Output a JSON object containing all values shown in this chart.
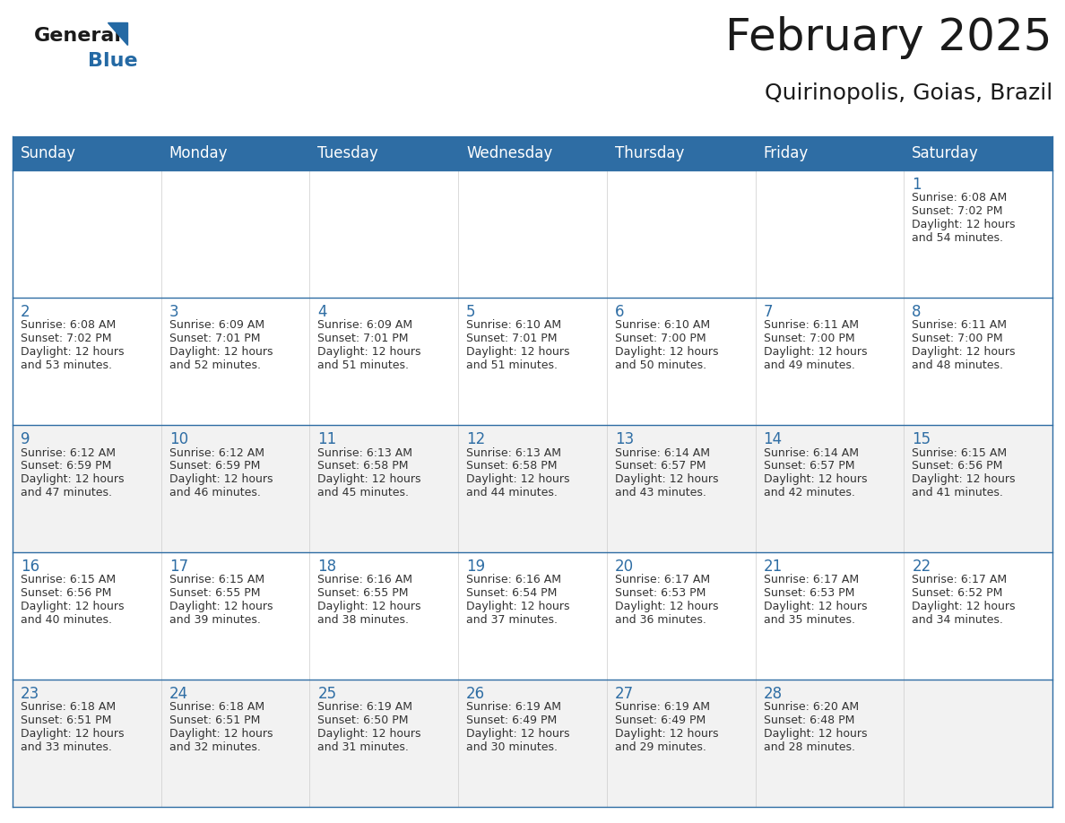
{
  "title": "February 2025",
  "subtitle": "Quirinopolis, Goias, Brazil",
  "header_bg": "#2E6DA4",
  "header_text": "#FFFFFF",
  "row_colors": [
    "#FFFFFF",
    "#FFFFFF",
    "#F2F2F2",
    "#FFFFFF",
    "#F2F2F2",
    "#FFFFFF"
  ],
  "cell_border": "#2E6DA4",
  "day_headers": [
    "Sunday",
    "Monday",
    "Tuesday",
    "Wednesday",
    "Thursday",
    "Friday",
    "Saturday"
  ],
  "days": [
    {
      "day": 1,
      "col": 6,
      "row": 0,
      "sunrise": "6:08 AM",
      "sunset": "7:02 PM",
      "daylight_suffix": "54 minutes."
    },
    {
      "day": 2,
      "col": 0,
      "row": 1,
      "sunrise": "6:08 AM",
      "sunset": "7:02 PM",
      "daylight_suffix": "53 minutes."
    },
    {
      "day": 3,
      "col": 1,
      "row": 1,
      "sunrise": "6:09 AM",
      "sunset": "7:01 PM",
      "daylight_suffix": "52 minutes."
    },
    {
      "day": 4,
      "col": 2,
      "row": 1,
      "sunrise": "6:09 AM",
      "sunset": "7:01 PM",
      "daylight_suffix": "51 minutes."
    },
    {
      "day": 5,
      "col": 3,
      "row": 1,
      "sunrise": "6:10 AM",
      "sunset": "7:01 PM",
      "daylight_suffix": "51 minutes."
    },
    {
      "day": 6,
      "col": 4,
      "row": 1,
      "sunrise": "6:10 AM",
      "sunset": "7:00 PM",
      "daylight_suffix": "50 minutes."
    },
    {
      "day": 7,
      "col": 5,
      "row": 1,
      "sunrise": "6:11 AM",
      "sunset": "7:00 PM",
      "daylight_suffix": "49 minutes."
    },
    {
      "day": 8,
      "col": 6,
      "row": 1,
      "sunrise": "6:11 AM",
      "sunset": "7:00 PM",
      "daylight_suffix": "48 minutes."
    },
    {
      "day": 9,
      "col": 0,
      "row": 2,
      "sunrise": "6:12 AM",
      "sunset": "6:59 PM",
      "daylight_suffix": "47 minutes."
    },
    {
      "day": 10,
      "col": 1,
      "row": 2,
      "sunrise": "6:12 AM",
      "sunset": "6:59 PM",
      "daylight_suffix": "46 minutes."
    },
    {
      "day": 11,
      "col": 2,
      "row": 2,
      "sunrise": "6:13 AM",
      "sunset": "6:58 PM",
      "daylight_suffix": "45 minutes."
    },
    {
      "day": 12,
      "col": 3,
      "row": 2,
      "sunrise": "6:13 AM",
      "sunset": "6:58 PM",
      "daylight_suffix": "44 minutes."
    },
    {
      "day": 13,
      "col": 4,
      "row": 2,
      "sunrise": "6:14 AM",
      "sunset": "6:57 PM",
      "daylight_suffix": "43 minutes."
    },
    {
      "day": 14,
      "col": 5,
      "row": 2,
      "sunrise": "6:14 AM",
      "sunset": "6:57 PM",
      "daylight_suffix": "42 minutes."
    },
    {
      "day": 15,
      "col": 6,
      "row": 2,
      "sunrise": "6:15 AM",
      "sunset": "6:56 PM",
      "daylight_suffix": "41 minutes."
    },
    {
      "day": 16,
      "col": 0,
      "row": 3,
      "sunrise": "6:15 AM",
      "sunset": "6:56 PM",
      "daylight_suffix": "40 minutes."
    },
    {
      "day": 17,
      "col": 1,
      "row": 3,
      "sunrise": "6:15 AM",
      "sunset": "6:55 PM",
      "daylight_suffix": "39 minutes."
    },
    {
      "day": 18,
      "col": 2,
      "row": 3,
      "sunrise": "6:16 AM",
      "sunset": "6:55 PM",
      "daylight_suffix": "38 minutes."
    },
    {
      "day": 19,
      "col": 3,
      "row": 3,
      "sunrise": "6:16 AM",
      "sunset": "6:54 PM",
      "daylight_suffix": "37 minutes."
    },
    {
      "day": 20,
      "col": 4,
      "row": 3,
      "sunrise": "6:17 AM",
      "sunset": "6:53 PM",
      "daylight_suffix": "36 minutes."
    },
    {
      "day": 21,
      "col": 5,
      "row": 3,
      "sunrise": "6:17 AM",
      "sunset": "6:53 PM",
      "daylight_suffix": "35 minutes."
    },
    {
      "day": 22,
      "col": 6,
      "row": 3,
      "sunrise": "6:17 AM",
      "sunset": "6:52 PM",
      "daylight_suffix": "34 minutes."
    },
    {
      "day": 23,
      "col": 0,
      "row": 4,
      "sunrise": "6:18 AM",
      "sunset": "6:51 PM",
      "daylight_suffix": "33 minutes."
    },
    {
      "day": 24,
      "col": 1,
      "row": 4,
      "sunrise": "6:18 AM",
      "sunset": "6:51 PM",
      "daylight_suffix": "32 minutes."
    },
    {
      "day": 25,
      "col": 2,
      "row": 4,
      "sunrise": "6:19 AM",
      "sunset": "6:50 PM",
      "daylight_suffix": "31 minutes."
    },
    {
      "day": 26,
      "col": 3,
      "row": 4,
      "sunrise": "6:19 AM",
      "sunset": "6:49 PM",
      "daylight_suffix": "30 minutes."
    },
    {
      "day": 27,
      "col": 4,
      "row": 4,
      "sunrise": "6:19 AM",
      "sunset": "6:49 PM",
      "daylight_suffix": "29 minutes."
    },
    {
      "day": 28,
      "col": 5,
      "row": 4,
      "sunrise": "6:20 AM",
      "sunset": "6:48 PM",
      "daylight_suffix": "28 minutes."
    }
  ],
  "num_rows": 5,
  "logo_color_general": "#1a1a1a",
  "logo_color_blue": "#2469A4",
  "logo_triangle_color": "#2469A4",
  "title_color": "#1a1a1a",
  "subtitle_color": "#1a1a1a",
  "day_number_color": "#2E6DA4",
  "cell_text_color": "#333333",
  "title_fontsize": 36,
  "subtitle_fontsize": 18,
  "header_fontsize": 12,
  "day_num_fontsize": 12,
  "cell_text_fontsize": 9
}
